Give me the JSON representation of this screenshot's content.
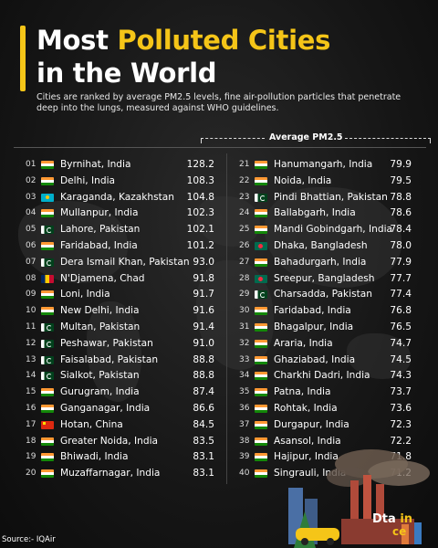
{
  "title": {
    "line1_prefix": "Most ",
    "line1_highlight": "Polluted Cities",
    "line2": "in the World"
  },
  "subtitle": "Cities are ranked by average PM2.5 levels, fine air-pollution particles that penetrate deep into the lungs, measured against WHO guidelines.",
  "column_header": "Average PM2.5",
  "source": "Source:- IQAir",
  "brand_text": {
    "part1": "D",
    "part2": "ta",
    "part3": "in",
    "part4": "ce"
  },
  "colors": {
    "accent": "#f5c518",
    "background": "#161616"
  },
  "left_column": [
    {
      "rank": "01",
      "flag": "india-flag",
      "city": "Byrnihat, India",
      "value": "128.2"
    },
    {
      "rank": "02",
      "flag": "india-flag",
      "city": "Delhi, India",
      "value": "108.3"
    },
    {
      "rank": "03",
      "flag": "kazakhstan-flag",
      "city": "Karaganda, Kazakhstan",
      "value": "104.8"
    },
    {
      "rank": "04",
      "flag": "india-flag",
      "city": "Mullanpur, India",
      "value": "102.3"
    },
    {
      "rank": "05",
      "flag": "pakistan-flag",
      "city": "Lahore, Pakistan",
      "value": "102.1"
    },
    {
      "rank": "06",
      "flag": "india-flag",
      "city": "Faridabad, India",
      "value": "101.2"
    },
    {
      "rank": "07",
      "flag": "pakistan-flag",
      "city": "Dera Ismail Khan, Pakistan",
      "value": "93.0"
    },
    {
      "rank": "08",
      "flag": "chad-flag",
      "city": "N'Djamena, Chad",
      "value": "91.8"
    },
    {
      "rank": "09",
      "flag": "india-flag",
      "city": "Loni, India",
      "value": "91.7"
    },
    {
      "rank": "10",
      "flag": "india-flag",
      "city": "New Delhi, India",
      "value": "91.6"
    },
    {
      "rank": "11",
      "flag": "pakistan-flag",
      "city": "Multan, Pakistan",
      "value": "91.4"
    },
    {
      "rank": "12",
      "flag": "pakistan-flag",
      "city": "Peshawar, Pakistan",
      "value": "91.0"
    },
    {
      "rank": "13",
      "flag": "pakistan-flag",
      "city": "Faisalabad, Pakistan",
      "value": "88.8"
    },
    {
      "rank": "14",
      "flag": "pakistan-flag",
      "city": "Sialkot, Pakistan",
      "value": "88.8"
    },
    {
      "rank": "15",
      "flag": "india-flag",
      "city": "Gurugram, India",
      "value": "87.4"
    },
    {
      "rank": "16",
      "flag": "india-flag",
      "city": "Ganganagar, India",
      "value": "86.6"
    },
    {
      "rank": "17",
      "flag": "china-flag",
      "city": "Hotan, China",
      "value": "84.5"
    },
    {
      "rank": "18",
      "flag": "india-flag",
      "city": "Greater Noida, India",
      "value": "83.5"
    },
    {
      "rank": "19",
      "flag": "india-flag",
      "city": "Bhiwadi, India",
      "value": "83.1"
    },
    {
      "rank": "20",
      "flag": "india-flag",
      "city": "Muzaffarnagar, India",
      "value": "83.1"
    }
  ],
  "right_column": [
    {
      "rank": "21",
      "flag": "india-flag",
      "city": "Hanumangarh, India",
      "value": "79.9"
    },
    {
      "rank": "22",
      "flag": "india-flag",
      "city": "Noida, India",
      "value": "79.5"
    },
    {
      "rank": "23",
      "flag": "pakistan-flag",
      "city": "Pindi Bhattian, Pakistan",
      "value": "78.8"
    },
    {
      "rank": "24",
      "flag": "india-flag",
      "city": "Ballabgarh, India",
      "value": "78.6"
    },
    {
      "rank": "25",
      "flag": "india-flag",
      "city": "Mandi Gobindgarh, India",
      "value": "78.4"
    },
    {
      "rank": "26",
      "flag": "bangladesh-flag",
      "city": "Dhaka, Bangladesh",
      "value": "78.0"
    },
    {
      "rank": "27",
      "flag": "india-flag",
      "city": "Bahadurgarh, India",
      "value": "77.9"
    },
    {
      "rank": "28",
      "flag": "bangladesh-flag",
      "city": "Sreepur, Bangladesh",
      "value": "77.7"
    },
    {
      "rank": "29",
      "flag": "pakistan-flag",
      "city": "Charsadda, Pakistan",
      "value": "77.4"
    },
    {
      "rank": "30",
      "flag": "india-flag",
      "city": "Faridabad, India",
      "value": "76.8"
    },
    {
      "rank": "31",
      "flag": "india-flag",
      "city": "Bhagalpur, India",
      "value": "76.5"
    },
    {
      "rank": "32",
      "flag": "india-flag",
      "city": "Araria, India",
      "value": "74.7"
    },
    {
      "rank": "33",
      "flag": "india-flag",
      "city": "Ghaziabad, India",
      "value": "74.5"
    },
    {
      "rank": "34",
      "flag": "india-flag",
      "city": "Charkhi Dadri, India",
      "value": "74.3"
    },
    {
      "rank": "35",
      "flag": "india-flag",
      "city": "Patna, India",
      "value": "73.7"
    },
    {
      "rank": "36",
      "flag": "india-flag",
      "city": "Rohtak, India",
      "value": "73.6"
    },
    {
      "rank": "37",
      "flag": "india-flag",
      "city": "Durgapur, India",
      "value": "72.3"
    },
    {
      "rank": "38",
      "flag": "india-flag",
      "city": "Asansol, India",
      "value": "72.2"
    },
    {
      "rank": "39",
      "flag": "india-flag",
      "city": "Hajipur, India",
      "value": "71.8"
    },
    {
      "rank": "40",
      "flag": "india-flag",
      "city": "Singrauli, India",
      "value": "71.2"
    }
  ]
}
